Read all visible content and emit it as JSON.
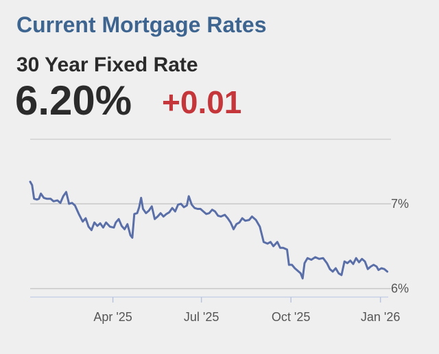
{
  "header": {
    "title": "Current Mortgage Rates"
  },
  "rate": {
    "label": "30 Year Fixed Rate",
    "value": "6.20%",
    "change": "+0.01"
  },
  "colors": {
    "title": "#3d6590",
    "line": "#5a6fa8",
    "change": "#c4363a",
    "gridline": "#c8c8c8",
    "background": "#efefef"
  },
  "chart_data": {
    "type": "line",
    "ylim": [
      5.9,
      7.3
    ],
    "yticks": [
      {
        "value": 7,
        "label": "7%"
      },
      {
        "value": 6,
        "label": "6%"
      }
    ],
    "xlim": [
      "2025-01-06",
      "2026-01-09"
    ],
    "xticks": [
      {
        "date": "2025-04-01",
        "label": "Apr '25"
      },
      {
        "date": "2025-07-01",
        "label": "Jul '25"
      },
      {
        "date": "2025-10-01",
        "label": "Oct '25"
      },
      {
        "date": "2026-01-01",
        "label": "Jan '26"
      }
    ],
    "grid": "horizontal",
    "series": [
      {
        "values": [
          [
            "2025-01-06",
            7.26
          ],
          [
            "2025-01-08",
            7.22
          ],
          [
            "2025-01-10",
            7.06
          ],
          [
            "2025-01-13",
            7.05
          ],
          [
            "2025-01-15",
            7.06
          ],
          [
            "2025-01-17",
            7.12
          ],
          [
            "2025-01-20",
            7.07
          ],
          [
            "2025-01-23",
            7.06
          ],
          [
            "2025-01-27",
            7.06
          ],
          [
            "2025-01-30",
            7.03
          ],
          [
            "2025-02-03",
            7.04
          ],
          [
            "2025-02-06",
            7.01
          ],
          [
            "2025-02-09",
            7.09
          ],
          [
            "2025-02-12",
            7.14
          ],
          [
            "2025-02-15",
            7.0
          ],
          [
            "2025-02-18",
            7.01
          ],
          [
            "2025-02-21",
            6.98
          ],
          [
            "2025-02-25",
            6.88
          ],
          [
            "2025-03-01",
            6.79
          ],
          [
            "2025-03-04",
            6.83
          ],
          [
            "2025-03-07",
            6.73
          ],
          [
            "2025-03-10",
            6.69
          ],
          [
            "2025-03-13",
            6.78
          ],
          [
            "2025-03-16",
            6.74
          ],
          [
            "2025-03-19",
            6.77
          ],
          [
            "2025-03-22",
            6.72
          ],
          [
            "2025-03-25",
            6.78
          ],
          [
            "2025-03-29",
            6.73
          ],
          [
            "2025-04-02",
            6.72
          ],
          [
            "2025-04-04",
            6.78
          ],
          [
            "2025-04-07",
            6.82
          ],
          [
            "2025-04-10",
            6.74
          ],
          [
            "2025-04-13",
            6.7
          ],
          [
            "2025-04-16",
            6.76
          ],
          [
            "2025-04-19",
            6.63
          ],
          [
            "2025-04-21",
            6.6
          ],
          [
            "2025-04-23",
            6.88
          ],
          [
            "2025-04-26",
            6.89
          ],
          [
            "2025-04-28",
            6.96
          ],
          [
            "2025-04-30",
            7.07
          ],
          [
            "2025-05-02",
            6.94
          ],
          [
            "2025-05-05",
            6.89
          ],
          [
            "2025-05-08",
            6.92
          ],
          [
            "2025-05-11",
            6.97
          ],
          [
            "2025-05-14",
            6.82
          ],
          [
            "2025-05-17",
            6.85
          ],
          [
            "2025-05-20",
            6.89
          ],
          [
            "2025-05-23",
            6.85
          ],
          [
            "2025-05-26",
            6.88
          ],
          [
            "2025-05-29",
            6.9
          ],
          [
            "2025-06-01",
            6.95
          ],
          [
            "2025-06-04",
            6.91
          ],
          [
            "2025-06-07",
            6.99
          ],
          [
            "2025-06-10",
            7.0
          ],
          [
            "2025-06-13",
            6.96
          ],
          [
            "2025-06-16",
            6.98
          ],
          [
            "2025-06-18",
            7.09
          ],
          [
            "2025-06-21",
            6.99
          ],
          [
            "2025-06-24",
            6.95
          ],
          [
            "2025-06-27",
            6.94
          ],
          [
            "2025-06-30",
            6.94
          ],
          [
            "2025-07-03",
            6.91
          ],
          [
            "2025-07-06",
            6.88
          ],
          [
            "2025-07-09",
            6.89
          ],
          [
            "2025-07-12",
            6.93
          ],
          [
            "2025-07-15",
            6.91
          ],
          [
            "2025-07-18",
            6.86
          ],
          [
            "2025-07-21",
            6.85
          ],
          [
            "2025-07-25",
            6.87
          ],
          [
            "2025-07-28",
            6.83
          ],
          [
            "2025-07-31",
            6.78
          ],
          [
            "2025-08-03",
            6.7
          ],
          [
            "2025-08-06",
            6.76
          ],
          [
            "2025-08-09",
            6.78
          ],
          [
            "2025-08-12",
            6.83
          ],
          [
            "2025-08-15",
            6.8
          ],
          [
            "2025-08-19",
            6.81
          ],
          [
            "2025-08-22",
            6.85
          ],
          [
            "2025-08-26",
            6.81
          ],
          [
            "2025-08-30",
            6.73
          ],
          [
            "2025-09-03",
            6.55
          ],
          [
            "2025-09-07",
            6.53
          ],
          [
            "2025-09-10",
            6.55
          ],
          [
            "2025-09-13",
            6.5
          ],
          [
            "2025-09-17",
            6.55
          ],
          [
            "2025-09-20",
            6.48
          ],
          [
            "2025-09-23",
            6.48
          ],
          [
            "2025-09-27",
            6.46
          ],
          [
            "2025-09-29",
            6.28
          ],
          [
            "2025-10-02",
            6.28
          ],
          [
            "2025-10-05",
            6.24
          ],
          [
            "2025-10-08",
            6.21
          ],
          [
            "2025-10-11",
            6.18
          ],
          [
            "2025-10-13",
            6.12
          ],
          [
            "2025-10-15",
            6.3
          ],
          [
            "2025-10-18",
            6.36
          ],
          [
            "2025-10-22",
            6.34
          ],
          [
            "2025-10-26",
            6.37
          ],
          [
            "2025-10-30",
            6.35
          ],
          [
            "2025-11-03",
            6.36
          ],
          [
            "2025-11-07",
            6.3
          ],
          [
            "2025-11-10",
            6.23
          ],
          [
            "2025-11-13",
            6.2
          ],
          [
            "2025-11-16",
            6.24
          ],
          [
            "2025-11-19",
            6.18
          ],
          [
            "2025-11-22",
            6.16
          ],
          [
            "2025-11-25",
            6.32
          ],
          [
            "2025-11-28",
            6.3
          ],
          [
            "2025-12-01",
            6.33
          ],
          [
            "2025-12-04",
            6.29
          ],
          [
            "2025-12-07",
            6.36
          ],
          [
            "2025-12-10",
            6.31
          ],
          [
            "2025-12-13",
            6.35
          ],
          [
            "2025-12-16",
            6.32
          ],
          [
            "2025-12-19",
            6.23
          ],
          [
            "2025-12-22",
            6.26
          ],
          [
            "2025-12-25",
            6.28
          ],
          [
            "2025-12-28",
            6.26
          ],
          [
            "2025-12-30",
            6.22
          ],
          [
            "2026-01-02",
            6.24
          ],
          [
            "2026-01-05",
            6.23
          ],
          [
            "2026-01-08",
            6.2
          ]
        ]
      }
    ]
  }
}
